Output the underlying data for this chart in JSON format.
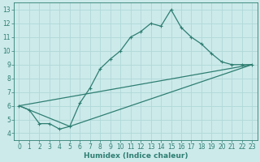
{
  "xlabel": "Humidex (Indice chaleur)",
  "xlim": [
    -0.5,
    23.5
  ],
  "ylim": [
    3.5,
    13.5
  ],
  "xticks": [
    0,
    1,
    2,
    3,
    4,
    5,
    6,
    7,
    8,
    9,
    10,
    11,
    12,
    13,
    14,
    15,
    16,
    17,
    18,
    19,
    20,
    21,
    22,
    23
  ],
  "yticks": [
    4,
    5,
    6,
    7,
    8,
    9,
    10,
    11,
    12,
    13
  ],
  "bg_color": "#cceaea",
  "grid_color": "#b0d8d8",
  "line_color": "#2e7e72",
  "line1_x": [
    0,
    1,
    2,
    3,
    4,
    5,
    6,
    7,
    8,
    9,
    10,
    11,
    12,
    13,
    14,
    15,
    16,
    17,
    18,
    19,
    20,
    21,
    22,
    23
  ],
  "line1_y": [
    6.0,
    5.7,
    4.7,
    4.7,
    4.3,
    4.5,
    6.2,
    7.3,
    8.7,
    9.4,
    10.0,
    11.0,
    11.4,
    12.0,
    11.8,
    13.0,
    11.7,
    11.0,
    10.5,
    9.8,
    9.2,
    9.0,
    9.0,
    9.0
  ],
  "line2_x": [
    0,
    23
  ],
  "line2_y": [
    6.0,
    9.0
  ],
  "line3_x": [
    0,
    5,
    23
  ],
  "line3_y": [
    6.0,
    4.5,
    9.0
  ]
}
